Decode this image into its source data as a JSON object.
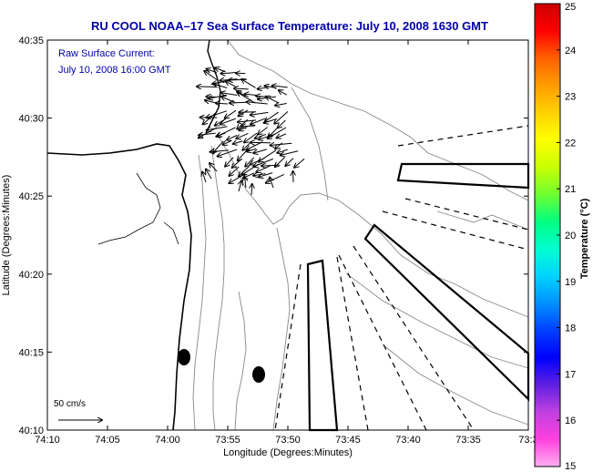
{
  "title": "RU COOL   NOAA–17  Sea Surface Temperature:  July 10, 2008 1630 GMT",
  "annotation": {
    "line1": "Raw Surface Current:",
    "line2": "July 10, 2008 16:00 GMT"
  },
  "scale_label": "50 cm/s",
  "axes": {
    "xlabel": "Longitude (Degrees:Minutes)",
    "ylabel": "Latitude (Degrees:Minutes)",
    "x_ticks": [
      "74:10",
      "74:05",
      "74:00",
      "73:55",
      "73:50",
      "73:45",
      "73:40",
      "73:35",
      "73:3"
    ],
    "y_ticks": [
      "40:35",
      "40:30",
      "40:25",
      "40:20",
      "40:15",
      "40:10"
    ]
  },
  "colorbar": {
    "label": "Temperature (°C)",
    "ticks": [
      "25",
      "24",
      "23",
      "22",
      "21",
      "20",
      "19",
      "18",
      "17",
      "16",
      "15"
    ],
    "colors": [
      "#cc0000",
      "#ff0000",
      "#ff6000",
      "#ff9c00",
      "#ffd200",
      "#ffff00",
      "#c8ff00",
      "#70ff30",
      "#00ff80",
      "#00ffd0",
      "#00d4ff",
      "#0090ff",
      "#0040ff",
      "#0000ff",
      "#6020e0",
      "#c040e0",
      "#ff40e0",
      "#ffb0f0"
    ]
  },
  "icons": {
    "coastline": "coastline-contour",
    "buoys": "buoy-marker",
    "current": "current-vector-arrow"
  }
}
